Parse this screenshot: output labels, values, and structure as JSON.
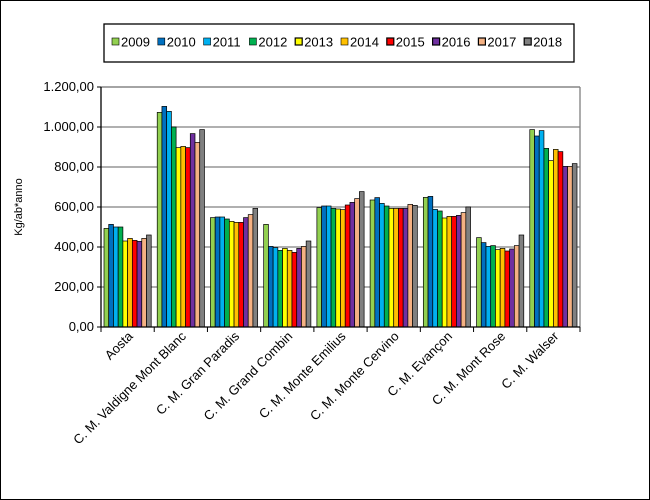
{
  "chart_data": {
    "type": "bar",
    "title": "",
    "xlabel": "",
    "ylabel": "Kg/ab*anno",
    "ylim": [
      0,
      1200
    ],
    "ytick_step": 200,
    "yticks": [
      "0,00",
      "200,00",
      "400,00",
      "600,00",
      "800,00",
      "1.000,00",
      "1.200,00"
    ],
    "grid": true,
    "legend_position": "top",
    "categories": [
      "Aosta",
      "C. M. Valdigne Mont Blanc",
      "C. M. Gran Paradis",
      "C. M. Grand Combin",
      "C. M. Monte Emilius",
      "C. M. Monte Cervino",
      "C. M. Evançon",
      "C. M. Mont Rose",
      "C. M. Walser"
    ],
    "series": [
      {
        "name": "2009",
        "color": "#92D050",
        "values": [
          493,
          1073,
          547,
          513,
          597,
          635,
          648,
          447,
          987
        ]
      },
      {
        "name": "2010",
        "color": "#0070C0",
        "values": [
          513,
          1103,
          550,
          403,
          605,
          647,
          653,
          422,
          955
        ]
      },
      {
        "name": "2011",
        "color": "#00B0F0",
        "values": [
          500,
          1078,
          550,
          397,
          605,
          618,
          588,
          403,
          982
        ]
      },
      {
        "name": "2012",
        "color": "#00B050",
        "values": [
          500,
          1000,
          540,
          383,
          593,
          605,
          580,
          407,
          893
        ]
      },
      {
        "name": "2013",
        "color": "#FFFF00",
        "values": [
          430,
          897,
          528,
          393,
          590,
          593,
          545,
          387,
          832
        ]
      },
      {
        "name": "2014",
        "color": "#FFC000",
        "values": [
          443,
          903,
          523,
          383,
          587,
          593,
          553,
          393,
          888
        ]
      },
      {
        "name": "2015",
        "color": "#FF0000",
        "values": [
          433,
          897,
          523,
          373,
          610,
          593,
          553,
          380,
          877
        ]
      },
      {
        "name": "2016",
        "color": "#7030A0",
        "values": [
          428,
          967,
          547,
          393,
          623,
          593,
          558,
          390,
          803
        ]
      },
      {
        "name": "2017",
        "color": "#F4B183",
        "values": [
          443,
          923,
          562,
          403,
          642,
          613,
          572,
          407,
          803
        ]
      },
      {
        "name": "2018",
        "color": "#808080",
        "values": [
          460,
          987,
          593,
          430,
          677,
          608,
          600,
          460,
          817
        ]
      }
    ]
  }
}
